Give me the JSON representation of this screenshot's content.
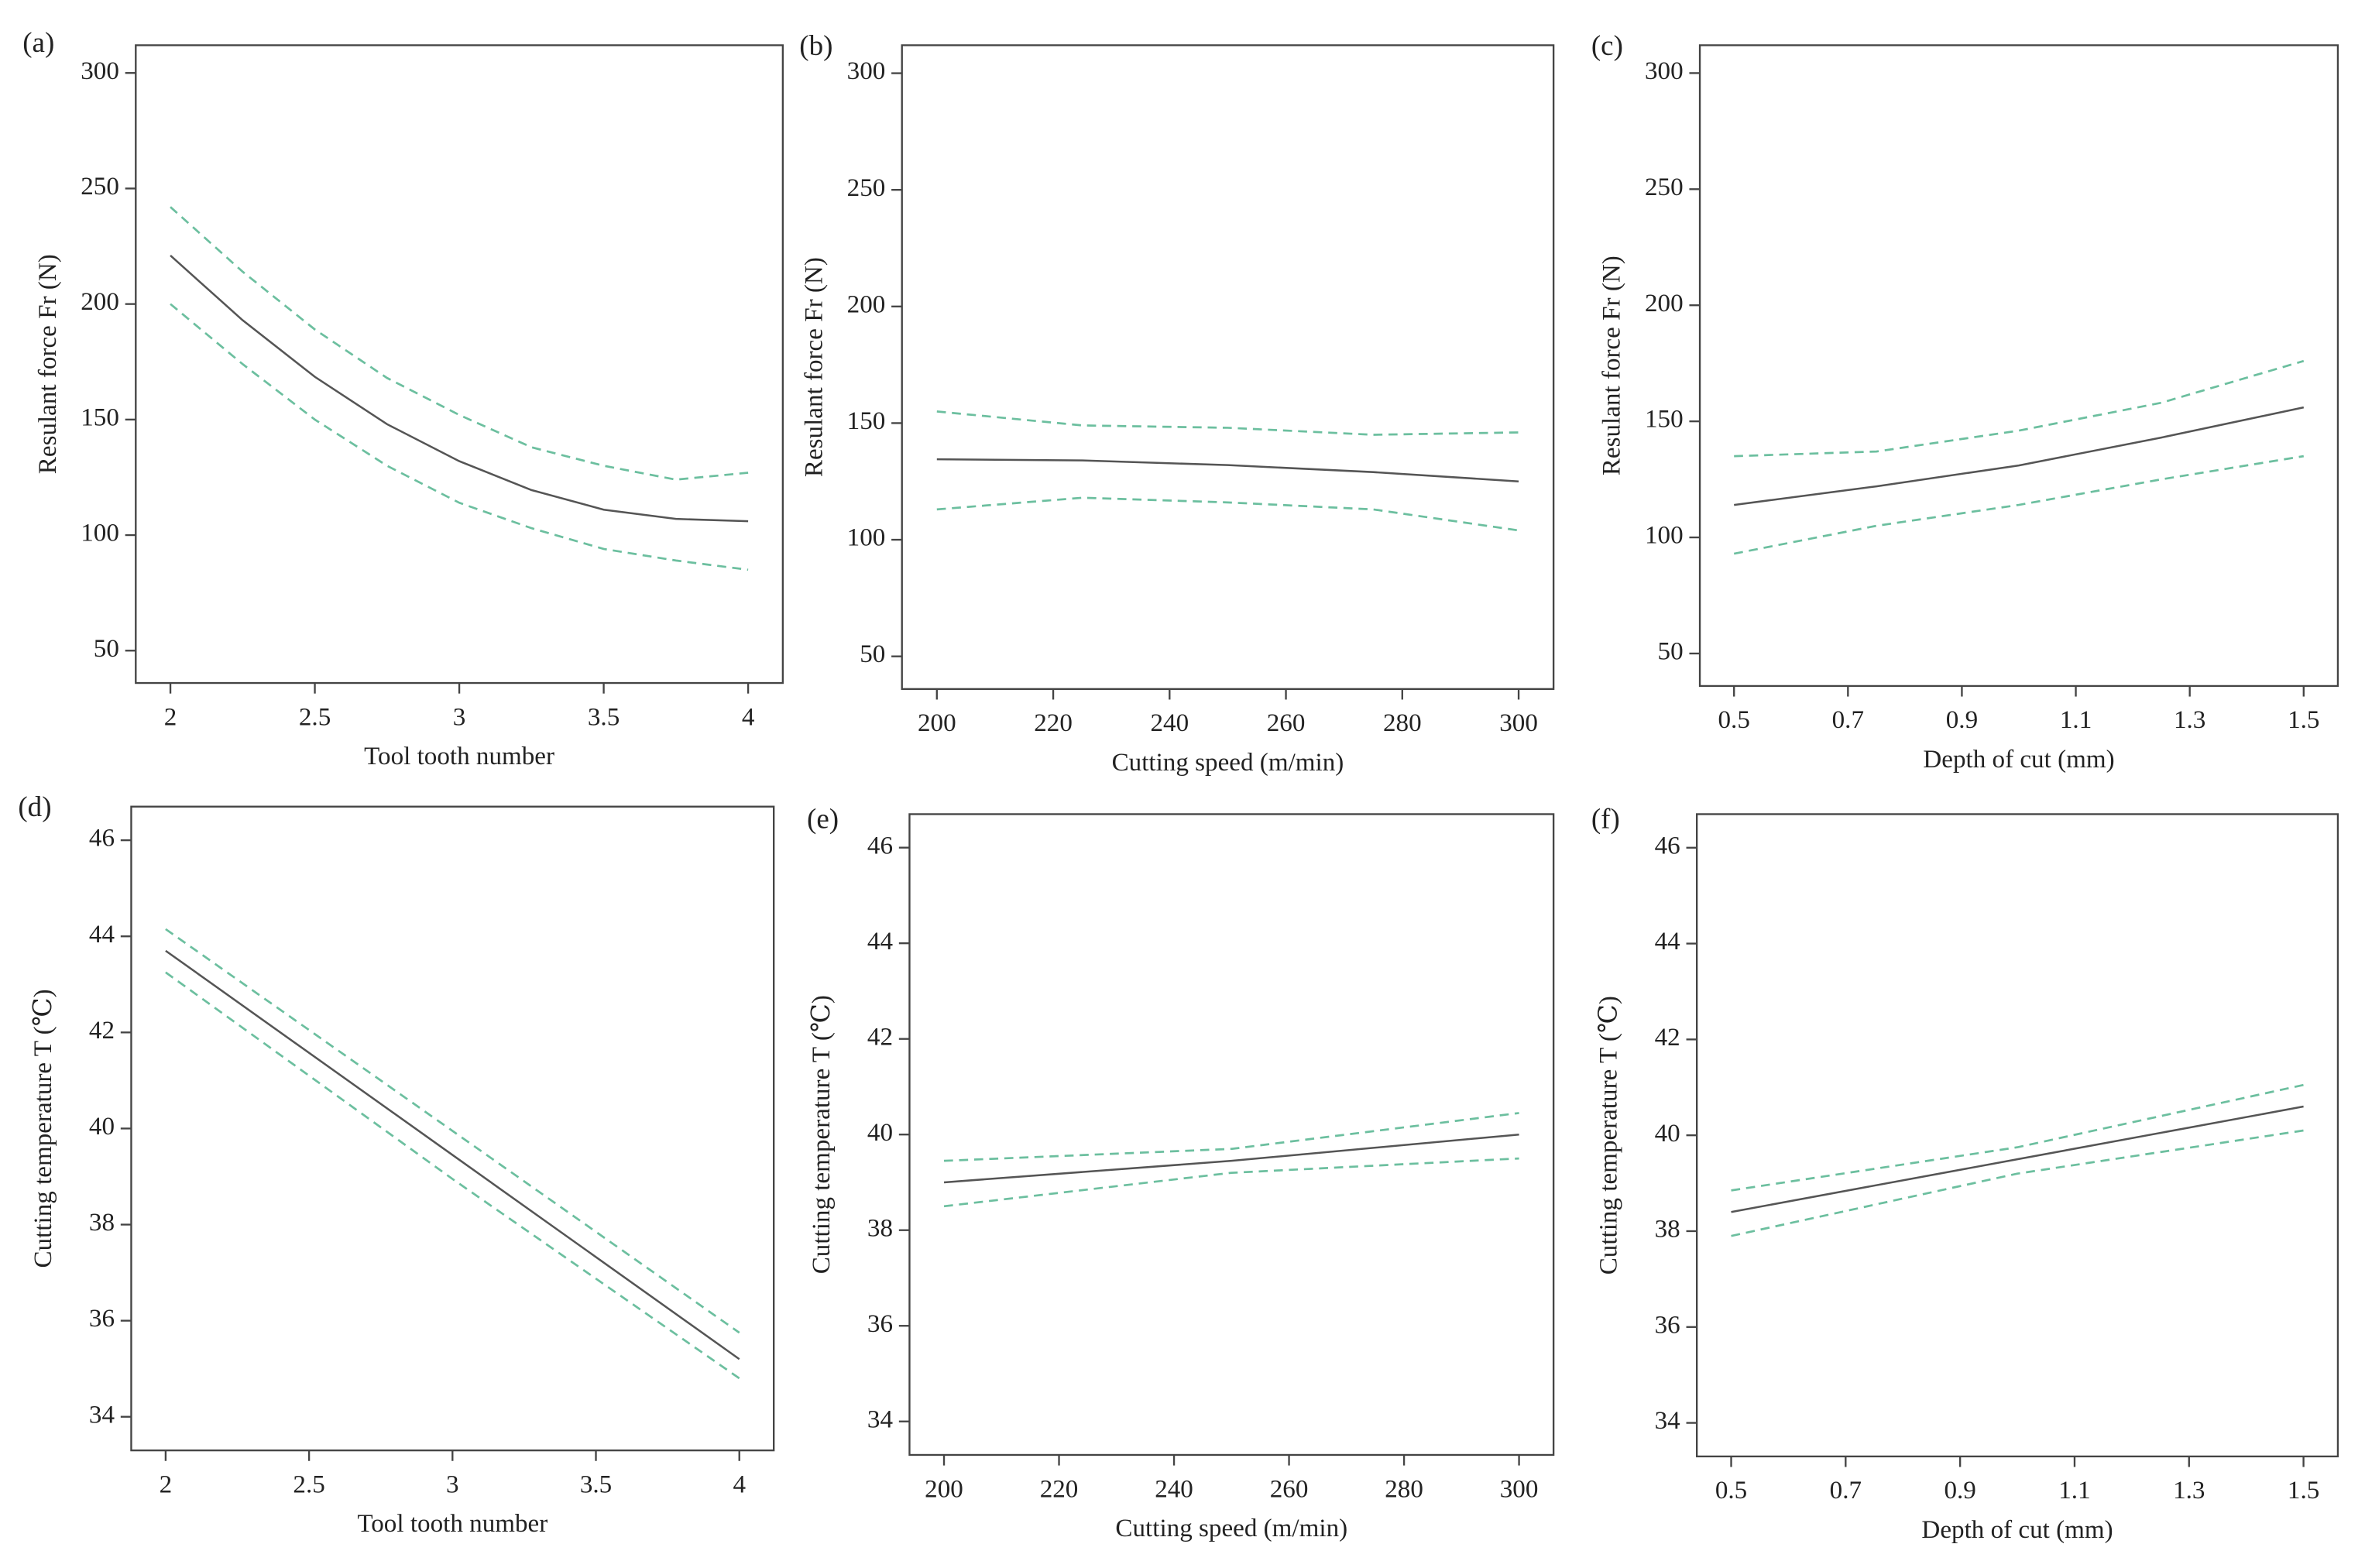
{
  "chart_data": [
    {
      "type": "line",
      "panel_label": "(a)",
      "x_label": "Tool tooth number",
      "y_label": "Resulant force Fr (N)",
      "x": [
        2,
        2.25,
        2.5,
        2.75,
        3,
        3.25,
        3.5,
        3.75,
        4
      ],
      "series": [
        {
          "color": "#555555",
          "dashed": false,
          "values": [
            221,
            193,
            168.5,
            148,
            132,
            119.5,
            111,
            107,
            106
          ]
        },
        {
          "color": "#6cbf9f",
          "dashed": true,
          "values": [
            242,
            214,
            189,
            168,
            152,
            138,
            130,
            124,
            127
          ]
        },
        {
          "color": "#6cbf9f",
          "dashed": true,
          "values": [
            200,
            174,
            150,
            130,
            114,
            103,
            94,
            89,
            85
          ]
        }
      ],
      "xlim": [
        1.88,
        4.12
      ],
      "ylim": [
        36,
        312
      ],
      "xticks": [
        2,
        2.5,
        3,
        3.5,
        4
      ],
      "yticks": [
        50,
        100,
        150,
        200,
        250,
        300
      ]
    },
    {
      "type": "line",
      "panel_label": "(b)",
      "x_label": "Cutting speed (m/min)",
      "y_label": "Resulant force Fr (N)",
      "x": [
        200,
        225,
        250,
        275,
        300
      ],
      "series": [
        {
          "color": "#555555",
          "dashed": false,
          "values": [
            134.5,
            134,
            132,
            129,
            125
          ]
        },
        {
          "color": "#6cbf9f",
          "dashed": true,
          "values": [
            155,
            149,
            148,
            145,
            146
          ]
        },
        {
          "color": "#6cbf9f",
          "dashed": true,
          "values": [
            113,
            118,
            116,
            113,
            104
          ]
        }
      ],
      "xlim": [
        194,
        306
      ],
      "ylim": [
        36,
        312
      ],
      "xticks": [
        200,
        220,
        240,
        260,
        280,
        300
      ],
      "yticks": [
        50,
        100,
        150,
        200,
        250,
        300
      ]
    },
    {
      "type": "line",
      "panel_label": "(c)",
      "x_label": "Depth of cut (mm)",
      "y_label": "Resulant force Fr (N)",
      "x": [
        0.5,
        0.75,
        1.0,
        1.25,
        1.5
      ],
      "series": [
        {
          "color": "#555555",
          "dashed": false,
          "values": [
            114,
            122,
            131,
            143,
            156
          ]
        },
        {
          "color": "#6cbf9f",
          "dashed": true,
          "values": [
            135,
            137,
            146,
            158,
            176
          ]
        },
        {
          "color": "#6cbf9f",
          "dashed": true,
          "values": [
            93,
            105,
            114,
            125,
            135
          ]
        }
      ],
      "xlim": [
        0.44,
        1.56
      ],
      "ylim": [
        36,
        312
      ],
      "xticks": [
        0.5,
        0.7,
        0.9,
        1.1,
        1.3,
        1.5
      ],
      "yticks": [
        50,
        100,
        150,
        200,
        250,
        300
      ]
    },
    {
      "type": "line",
      "panel_label": "(d)",
      "x_label": "Tool tooth number",
      "y_label": "Cutting temperature T (℃)",
      "x": [
        2,
        3,
        4
      ],
      "series": [
        {
          "color": "#555555",
          "dashed": false,
          "values": [
            43.7,
            39.45,
            35.2
          ]
        },
        {
          "color": "#6cbf9f",
          "dashed": true,
          "values": [
            44.15,
            39.95,
            35.75
          ]
        },
        {
          "color": "#6cbf9f",
          "dashed": true,
          "values": [
            43.25,
            38.95,
            34.8
          ]
        }
      ],
      "xlim": [
        1.88,
        4.12
      ],
      "ylim": [
        33.3,
        46.7
      ],
      "xticks": [
        2,
        2.5,
        3,
        3.5,
        4
      ],
      "yticks": [
        34,
        36,
        38,
        40,
        42,
        44,
        46
      ]
    },
    {
      "type": "line",
      "panel_label": "(e)",
      "x_label": "Cutting speed (m/min)",
      "y_label": "Cutting temperature T (℃)",
      "x": [
        200,
        250,
        300
      ],
      "series": [
        {
          "color": "#555555",
          "dashed": false,
          "values": [
            39.0,
            39.45,
            40.0
          ]
        },
        {
          "color": "#6cbf9f",
          "dashed": true,
          "values": [
            39.45,
            39.7,
            40.45
          ]
        },
        {
          "color": "#6cbf9f",
          "dashed": true,
          "values": [
            38.5,
            39.2,
            39.5
          ]
        }
      ],
      "xlim": [
        194,
        306
      ],
      "ylim": [
        33.3,
        46.7
      ],
      "xticks": [
        200,
        220,
        240,
        260,
        280,
        300
      ],
      "yticks": [
        34,
        36,
        38,
        40,
        42,
        44,
        46
      ]
    },
    {
      "type": "line",
      "panel_label": "(f)",
      "x_label": "Depth of cut (mm)",
      "y_label": "Cutting temperature T (℃)",
      "x": [
        0.5,
        1.0,
        1.5
      ],
      "series": [
        {
          "color": "#555555",
          "dashed": false,
          "values": [
            38.4,
            39.5,
            40.6
          ]
        },
        {
          "color": "#6cbf9f",
          "dashed": true,
          "values": [
            38.85,
            39.75,
            41.05
          ]
        },
        {
          "color": "#6cbf9f",
          "dashed": true,
          "values": [
            37.9,
            39.2,
            40.1
          ]
        }
      ],
      "xlim": [
        0.44,
        1.56
      ],
      "ylim": [
        33.3,
        46.7
      ],
      "xticks": [
        0.5,
        0.7,
        0.9,
        1.1,
        1.3,
        1.5
      ],
      "yticks": [
        34,
        36,
        38,
        40,
        42,
        44,
        46
      ]
    }
  ]
}
